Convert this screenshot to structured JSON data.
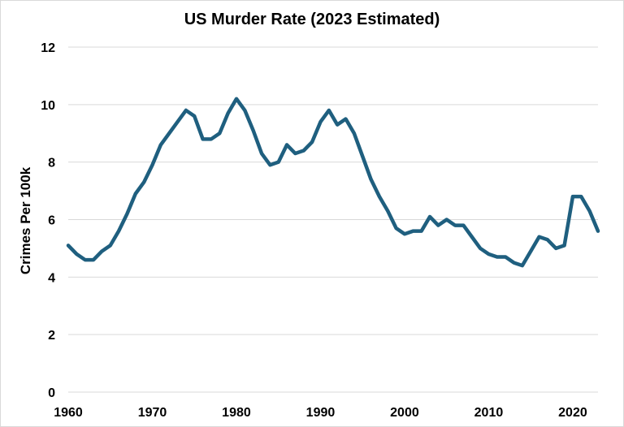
{
  "chart_data": {
    "type": "line",
    "title": "US Murder Rate (2023 Estimated)",
    "xlabel": "",
    "ylabel": "Crimes Per 100k",
    "xlim": [
      1960,
      2023
    ],
    "ylim": [
      0,
      12
    ],
    "x_ticks": [
      1960,
      1970,
      1980,
      1990,
      2000,
      2010,
      2020
    ],
    "y_ticks": [
      0,
      2,
      4,
      6,
      8,
      10,
      12
    ],
    "grid": "horizontal",
    "legend": "none",
    "line_color": "#1f5f7f",
    "series": [
      {
        "x": [
          1960,
          1961,
          1962,
          1963,
          1964,
          1965,
          1966,
          1967,
          1968,
          1969,
          1970,
          1971,
          1972,
          1973,
          1974,
          1975,
          1976,
          1977,
          1978,
          1979,
          1980,
          1981,
          1982,
          1983,
          1984,
          1985,
          1986,
          1987,
          1988,
          1989,
          1990,
          1991,
          1992,
          1993,
          1994,
          1995,
          1996,
          1997,
          1998,
          1999,
          2000,
          2001,
          2002,
          2003,
          2004,
          2005,
          2006,
          2007,
          2008,
          2009,
          2010,
          2011,
          2012,
          2013,
          2014,
          2015,
          2016,
          2017,
          2018,
          2019,
          2020,
          2021,
          2022,
          2023
        ],
        "values": [
          5.1,
          4.8,
          4.6,
          4.6,
          4.9,
          5.1,
          5.6,
          6.2,
          6.9,
          7.3,
          7.9,
          8.6,
          9.0,
          9.4,
          9.8,
          9.6,
          8.8,
          8.8,
          9.0,
          9.7,
          10.2,
          9.8,
          9.1,
          8.3,
          7.9,
          8.0,
          8.6,
          8.3,
          8.4,
          8.7,
          9.4,
          9.8,
          9.3,
          9.5,
          9.0,
          8.2,
          7.4,
          6.8,
          6.3,
          5.7,
          5.5,
          5.6,
          5.6,
          6.1,
          5.8,
          6.0,
          5.8,
          5.8,
          5.4,
          5.0,
          4.8,
          4.7,
          4.7,
          4.5,
          4.4,
          4.9,
          5.4,
          5.3,
          5.0,
          5.1,
          6.8,
          6.8,
          6.3,
          5.6
        ]
      }
    ]
  }
}
